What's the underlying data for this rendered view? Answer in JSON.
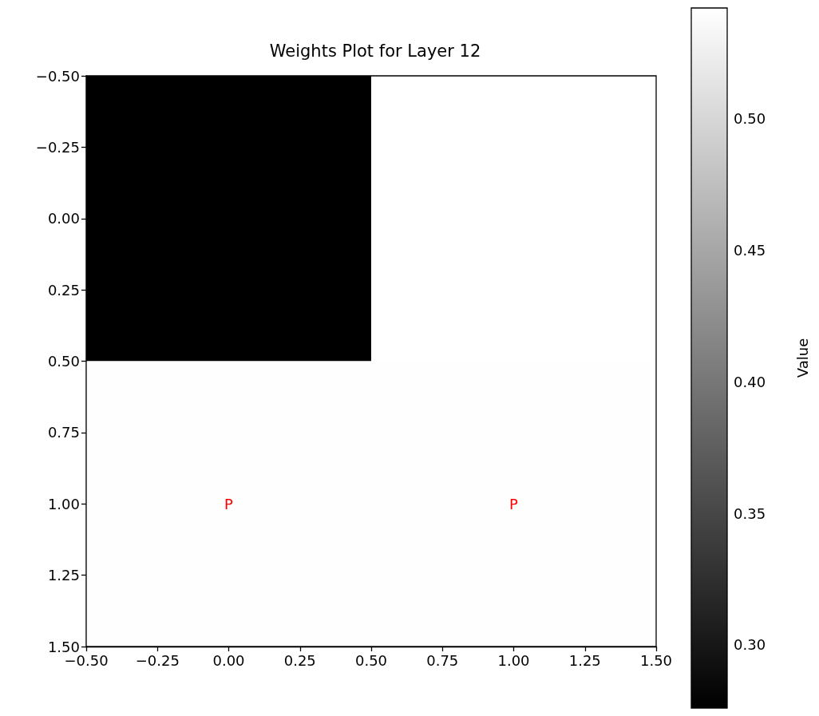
{
  "chart_data": {
    "type": "heatmap",
    "title": "Weights Plot for Layer 12",
    "clabel": "Value",
    "x": [
      0,
      1
    ],
    "cells": [
      [
        0.276,
        0.542
      ],
      [
        0.541,
        0.541
      ]
    ],
    "clim": [
      0.276,
      0.542
    ],
    "cticks": [
      {
        "value": 0.3,
        "label": "0.30"
      },
      {
        "value": 0.35,
        "label": "0.35"
      },
      {
        "value": 0.4,
        "label": "0.40"
      },
      {
        "value": 0.45,
        "label": "0.45"
      },
      {
        "value": 0.5,
        "label": "0.50"
      }
    ],
    "xlim": [
      -0.5,
      1.5
    ],
    "ylim": [
      1.5,
      -0.5
    ],
    "xticks": [
      {
        "value": -0.5,
        "label": "−0.50"
      },
      {
        "value": -0.25,
        "label": "−0.25"
      },
      {
        "value": 0,
        "label": "0.00"
      },
      {
        "value": 0.25,
        "label": "0.25"
      },
      {
        "value": 0.5,
        "label": "0.50"
      },
      {
        "value": 0.75,
        "label": "0.75"
      },
      {
        "value": 1,
        "label": "1.00"
      },
      {
        "value": 1.25,
        "label": "1.25"
      },
      {
        "value": 1.5,
        "label": "1.50"
      }
    ],
    "yticks": [
      {
        "value": -0.5,
        "label": "−0.50"
      },
      {
        "value": -0.25,
        "label": "−0.25"
      },
      {
        "value": 0,
        "label": "0.00"
      },
      {
        "value": 0.25,
        "label": "0.25"
      },
      {
        "value": 0.5,
        "label": "0.50"
      },
      {
        "value": 0.75,
        "label": "0.75"
      },
      {
        "value": 1,
        "label": "1.00"
      },
      {
        "value": 1.25,
        "label": "1.25"
      },
      {
        "value": 1.5,
        "label": "1.50"
      }
    ],
    "annotations": [
      "P",
      "P"
    ]
  }
}
